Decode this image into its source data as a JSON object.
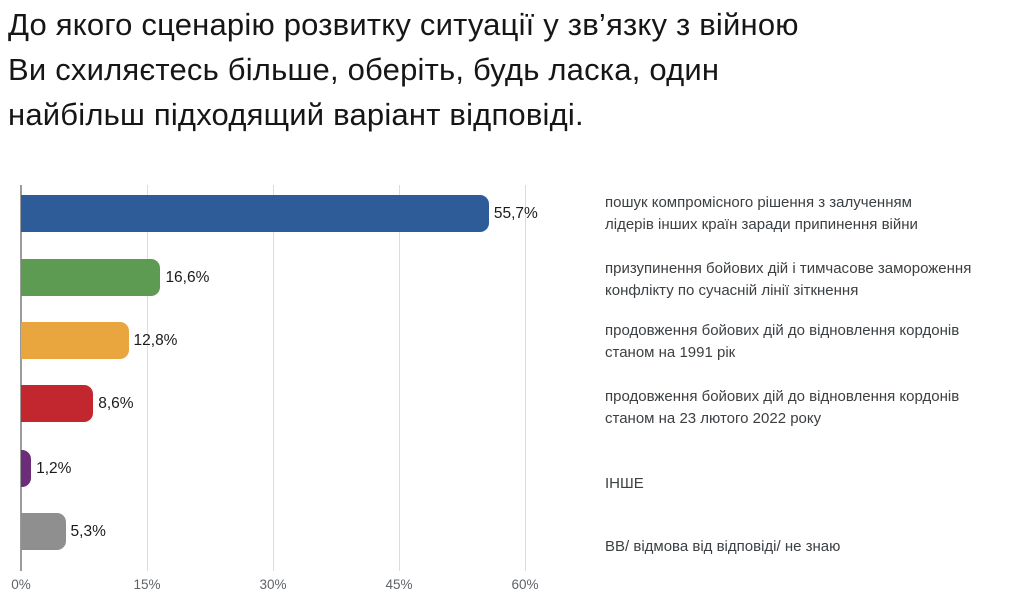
{
  "title": {
    "lines": [
      "До якого сценарію розвитку ситуації у зв’язку з війною",
      "Ви схиляєтесь більше, оберіть, будь ласка, один",
      "найбільш підходящий варіант відповіді."
    ]
  },
  "chart_data": {
    "type": "bar",
    "orientation": "horizontal",
    "title": "До якого сценарію розвитку ситуації у зв’язку з війною Ви схиляєтесь більше, оберіть, будь ласка, один найбільш підходящий варіант відповіді.",
    "categories": [
      [
        "пошук компромісного рішення з залученням",
        "лідерів інших країн заради припинення війни"
      ],
      [
        "призупинення бойових дій і тимчасове замороження",
        "конфлікту по сучасній лінії зіткнення"
      ],
      [
        "продовження бойових дій до відновлення кордонів",
        "станом на 1991 рік"
      ],
      [
        "продовження бойових дій до відновлення кордонів",
        "станом на 23 лютого 2022 року"
      ],
      [
        "ІНШЕ"
      ],
      [
        "ВВ/ відмова від відповіді/ не знаю"
      ]
    ],
    "values": [
      55.7,
      16.6,
      12.8,
      8.6,
      1.2,
      5.3
    ],
    "value_labels": [
      "55,7%",
      "16,6%",
      "12,8%",
      "8,6%",
      "1,2%",
      "5,3%"
    ],
    "bar_colors": [
      "#2e5c99",
      "#5e9b52",
      "#e9a63f",
      "#c2262e",
      "#6b2c78",
      "#8f8f8f"
    ],
    "xticks": [
      "0%",
      "15%",
      "30%",
      "45%",
      "60%"
    ],
    "xtick_values": [
      0,
      15,
      30,
      45,
      60
    ],
    "xlim": [
      0,
      60
    ],
    "ylabel": "",
    "xlabel": "",
    "grid": "vertical",
    "legend_position": "right"
  }
}
